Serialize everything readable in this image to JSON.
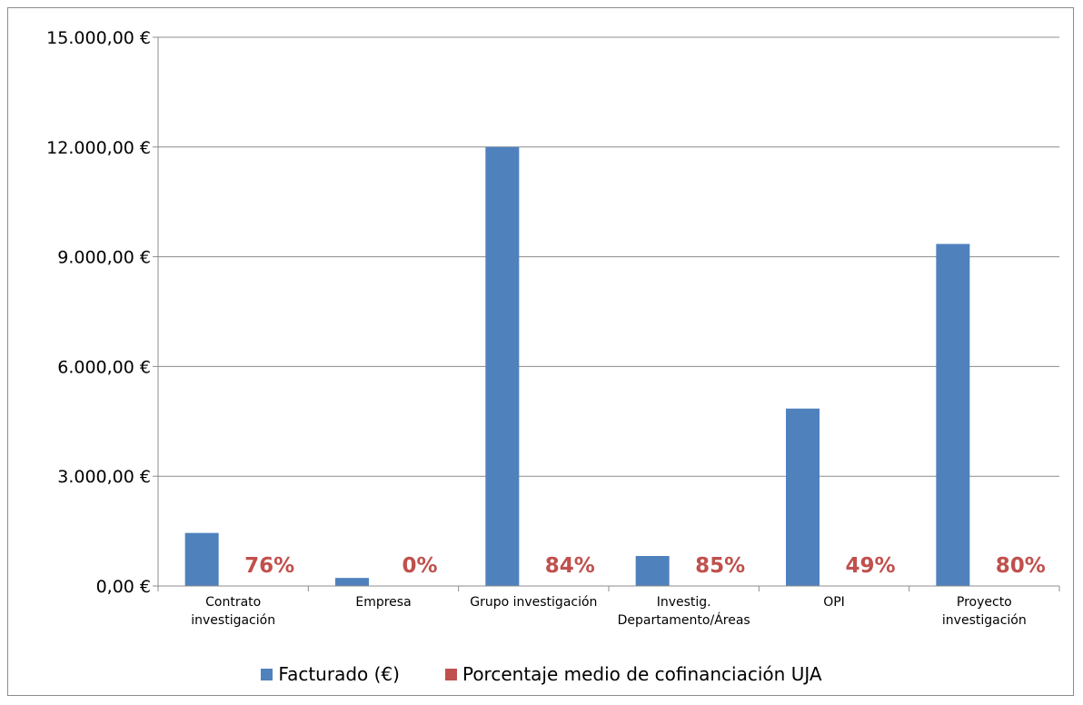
{
  "chart_data": {
    "type": "bar",
    "title": "",
    "xlabel": "",
    "ylabel": "",
    "categories": [
      [
        "Contrato",
        "investigación"
      ],
      [
        "Empresa"
      ],
      [
        "Grupo investigación"
      ],
      [
        "Investig.",
        "Departamento/Áreas"
      ],
      [
        "OPI"
      ],
      [
        "Proyecto",
        "investigación"
      ]
    ],
    "ylim": [
      0,
      15000
    ],
    "yticks": [
      0,
      3000,
      6000,
      9000,
      12000,
      15000
    ],
    "ytick_labels": [
      "0,00 €",
      "3.000,00 €",
      "6.000,00 €",
      "9.000,00 €",
      "12.000,00 €",
      "15.000,00 €"
    ],
    "grid": true,
    "legend_position": "bottom",
    "series": [
      {
        "name": "Facturado  (€)",
        "color": "#4f81bd",
        "values": [
          1450,
          220,
          12000,
          820,
          4850,
          9350
        ]
      },
      {
        "name": "Porcentaje medio de cofinanciación UJA",
        "color": "#c0504d",
        "values": [
          0.76,
          0,
          0.84,
          0.85,
          0.49,
          0.8
        ],
        "data_labels": [
          "76%",
          "0%",
          "84%",
          "85%",
          "49%",
          "80%"
        ]
      }
    ]
  }
}
